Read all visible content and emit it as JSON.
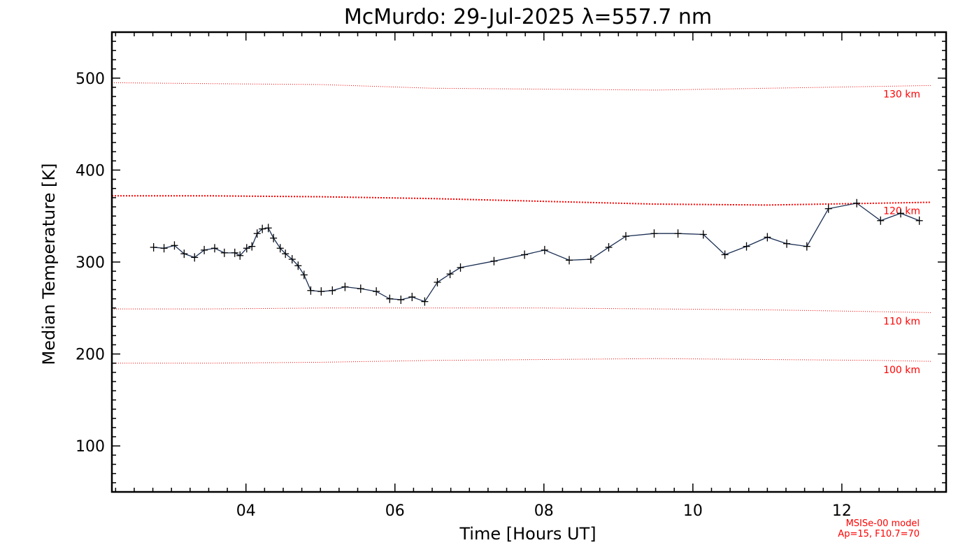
{
  "chart_data": {
    "type": "line",
    "title": "McMurdo: 29-Jul-2025 λ=557.7 nm",
    "xlabel": "Time [Hours UT]",
    "ylabel": "Median Temperature [K]",
    "xlim": [
      2.2,
      13.4
    ],
    "ylim": [
      50,
      550
    ],
    "x_ticks": [
      4,
      6,
      8,
      10,
      12
    ],
    "x_tick_labels": [
      "04",
      "06",
      "08",
      "10",
      "12"
    ],
    "y_ticks": [
      100,
      200,
      300,
      400,
      500
    ],
    "y_tick_labels": [
      "100",
      "200",
      "300",
      "400",
      "500"
    ],
    "grid": false,
    "line_color": "#1a2e52",
    "reference_color": "#ff0000",
    "series": [
      {
        "x": [
          2.76,
          2.9,
          3.04,
          3.17,
          3.31,
          3.44,
          3.58,
          3.71,
          3.85,
          3.92,
          4.01,
          4.08,
          4.15,
          4.22,
          4.3,
          4.37,
          4.46,
          4.53,
          4.62,
          4.7,
          4.78,
          4.87,
          5.01,
          5.16,
          5.33,
          5.54,
          5.75,
          5.93,
          6.08,
          6.23,
          6.4,
          6.57,
          6.74,
          6.88,
          7.33,
          7.74,
          8.01,
          8.34,
          8.63,
          8.87,
          9.1,
          9.48,
          9.8,
          10.14,
          10.43,
          10.72,
          11.0,
          11.26,
          11.53,
          11.82,
          12.2,
          12.52,
          12.79,
          13.04
        ],
        "values": [
          316,
          315,
          318,
          309,
          305,
          313,
          315,
          310,
          310,
          307,
          315,
          317,
          331,
          336,
          337,
          326,
          315,
          309,
          303,
          296,
          286,
          269,
          268,
          269,
          273,
          271,
          268,
          260,
          259,
          262,
          257,
          278,
          287,
          294,
          301,
          308,
          313,
          302,
          303,
          316,
          328,
          331,
          331,
          330,
          308,
          317,
          327,
          320,
          317,
          358,
          364,
          345,
          353,
          345
        ]
      }
    ],
    "reference_lines": [
      {
        "label": "130 km",
        "x": [
          2.2,
          3.5,
          5.0,
          6.5,
          8.0,
          9.5,
          11.0,
          12.5,
          13.2
        ],
        "values": [
          495,
          494,
          493,
          489,
          488,
          487,
          489,
          491,
          492
        ]
      },
      {
        "label": "120 km",
        "x": [
          2.2,
          3.5,
          5.0,
          6.5,
          8.0,
          9.5,
          11.0,
          12.5,
          13.2
        ],
        "values": [
          372,
          372,
          371,
          369,
          366,
          363,
          362,
          364,
          365
        ]
      },
      {
        "label": "110 km",
        "x": [
          2.2,
          3.5,
          5.0,
          6.5,
          8.0,
          9.5,
          11.0,
          12.5,
          13.2
        ],
        "values": [
          249,
          249,
          250,
          250,
          250,
          249,
          248,
          246,
          245
        ]
      },
      {
        "label": "100 km",
        "x": [
          2.2,
          3.5,
          5.0,
          6.5,
          8.0,
          9.5,
          11.0,
          12.5,
          13.2
        ],
        "values": [
          190,
          190,
          191,
          193,
          194,
          195,
          194,
          193,
          192
        ]
      }
    ],
    "annotations": [
      "MSISe-00 model",
      "Ap=15, F10.7=70"
    ]
  }
}
